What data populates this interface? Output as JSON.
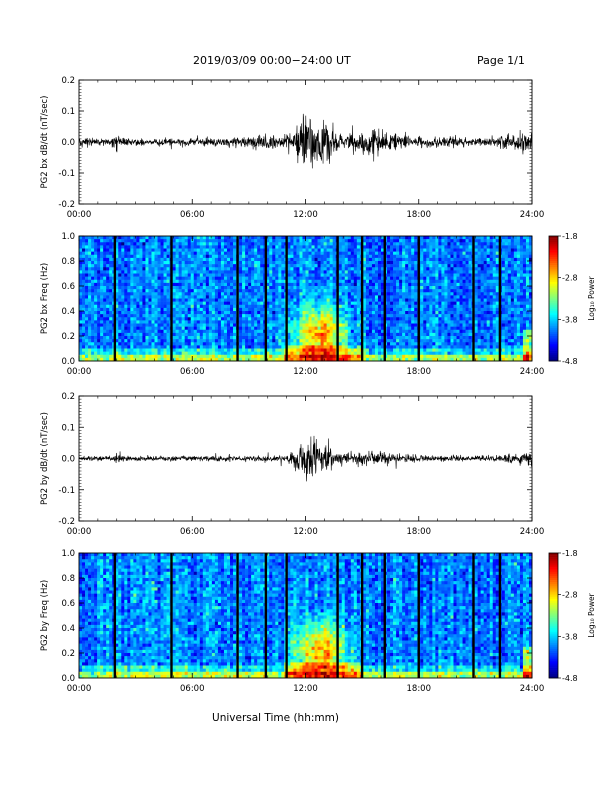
{
  "header": {
    "date_range": "2019/03/09   00:00−24:00 UT",
    "page": "Page 1/1"
  },
  "time_ticks": [
    "00:00",
    "06:00",
    "12:00",
    "18:00",
    "24:00"
  ],
  "xlabel": "Universal Time (hh:mm)",
  "colorbar": {
    "label": "Log₁₀ Power",
    "ticks": [
      "-1.8",
      "-2.8",
      "-3.8",
      "-4.8"
    ],
    "range": [
      -4.8,
      -1.8
    ]
  },
  "chart_data": [
    {
      "type": "line",
      "ylabel": "PG2 bx dB/dt (nT/sec)",
      "ylim": [
        -0.2,
        0.2
      ],
      "yticks": [
        "0.2",
        "0.1",
        "0.0",
        "-0.1",
        "-0.2"
      ],
      "xlim_hours": [
        0,
        24
      ],
      "envelope": {
        "hours": [
          0,
          1.5,
          2,
          3,
          5,
          8,
          9,
          10,
          11,
          11.5,
          12,
          12.5,
          13,
          13.5,
          14,
          15,
          16,
          17,
          18,
          19,
          20,
          22,
          23.5,
          24
        ],
        "amplitude": [
          0.015,
          0.012,
          0.02,
          0.012,
          0.012,
          0.015,
          0.02,
          0.025,
          0.02,
          0.06,
          0.11,
          0.09,
          0.08,
          0.05,
          0.03,
          0.045,
          0.045,
          0.03,
          0.02,
          0.018,
          0.015,
          0.015,
          0.04,
          0.03
        ]
      }
    },
    {
      "type": "heatmap",
      "ylabel": "PG2 bx Freq (Hz)",
      "ylim": [
        0.0,
        1.0
      ],
      "yticks": [
        "1.0",
        "0.8",
        "0.6",
        "0.4",
        "0.2",
        "0.0"
      ],
      "xlim_hours": [
        0,
        24
      ],
      "data_gap_hours": [
        1.9,
        4.9,
        8.4,
        9.9,
        11.0,
        13.7,
        15.0,
        16.2,
        18.0,
        20.9,
        22.3
      ],
      "enhancement": {
        "center_hours": 12.8,
        "freq_hz": [
          0.0,
          0.5
        ],
        "peak_log_power": -2.3
      }
    },
    {
      "type": "line",
      "ylabel": "PG2 by dB/dt (nT/sec)",
      "ylim": [
        -0.2,
        0.2
      ],
      "yticks": [
        "0.2",
        "0.1",
        "0.0",
        "-0.1",
        "-0.2"
      ],
      "xlim_hours": [
        0,
        24
      ],
      "envelope": {
        "hours": [
          0,
          1.5,
          2,
          3,
          5,
          8,
          9,
          10,
          11,
          11.5,
          12,
          12.5,
          13,
          13.5,
          14,
          15,
          16,
          17,
          18,
          19,
          20,
          22,
          23.5,
          24
        ],
        "amplitude": [
          0.008,
          0.008,
          0.015,
          0.008,
          0.008,
          0.008,
          0.01,
          0.01,
          0.01,
          0.035,
          0.07,
          0.06,
          0.055,
          0.03,
          0.02,
          0.025,
          0.02,
          0.015,
          0.012,
          0.01,
          0.01,
          0.01,
          0.025,
          0.03
        ]
      }
    },
    {
      "type": "heatmap",
      "ylabel": "PG2 by Freq (Hz)",
      "ylim": [
        0.0,
        1.0
      ],
      "yticks": [
        "1.0",
        "0.8",
        "0.6",
        "0.4",
        "0.2",
        "0.0"
      ],
      "xlim_hours": [
        0,
        24
      ],
      "data_gap_hours": [
        1.9,
        4.9,
        8.4,
        9.9,
        11.0,
        13.7,
        15.0,
        16.2,
        18.0,
        20.9,
        22.3
      ],
      "enhancement": {
        "center_hours": 12.8,
        "freq_hz": [
          0.0,
          0.5
        ],
        "peak_log_power": -2.3
      }
    }
  ]
}
